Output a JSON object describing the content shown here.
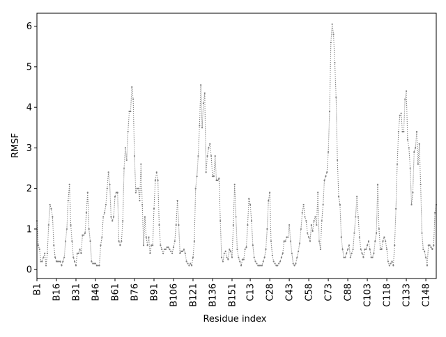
{
  "chart_data": {
    "type": "line",
    "title": "",
    "xlabel": "Residue index",
    "ylabel": "RMSF",
    "xlim": [
      0,
      307
    ],
    "ylim": [
      -0.22,
      6.32
    ],
    "yticks": [
      0,
      1,
      2,
      3,
      4,
      5,
      6
    ],
    "grid": false,
    "legend": "none",
    "x_tick_positions": [
      0,
      15,
      30,
      45,
      60,
      75,
      90,
      105,
      120,
      135,
      150,
      164,
      179,
      194,
      209,
      224,
      239,
      254,
      269,
      284,
      299
    ],
    "x_tick_labels": [
      "B1",
      "B16",
      "B31",
      "B46",
      "B61",
      "B76",
      "B91",
      "B106",
      "B121",
      "B136",
      "B151",
      "C13",
      "C28",
      "C43",
      "C58",
      "C73",
      "C88",
      "C103",
      "C118",
      "C133",
      "C148"
    ],
    "series": [
      {
        "name": "",
        "color": "#808080",
        "line_style": "dotted",
        "marker": "point",
        "values": [
          1.2,
          0.6,
          0.5,
          0.2,
          0.2,
          0.3,
          0.4,
          0.1,
          0.4,
          1.1,
          1.6,
          1.5,
          1.3,
          0.6,
          0.3,
          0.2,
          0.2,
          0.2,
          0.2,
          0.1,
          0.2,
          0.3,
          0.7,
          1.0,
          1.7,
          2.1,
          1.1,
          0.7,
          0.3,
          0.2,
          0.1,
          0.4,
          0.4,
          0.5,
          0.4,
          0.85,
          0.85,
          0.9,
          1.4,
          1.9,
          1.0,
          0.7,
          0.2,
          0.15,
          0.15,
          0.15,
          0.1,
          0.1,
          0.1,
          0.6,
          0.8,
          1.3,
          1.4,
          1.6,
          2.0,
          2.4,
          2.1,
          1.3,
          1.2,
          1.3,
          1.8,
          1.9,
          1.9,
          0.7,
          0.6,
          0.7,
          1.2,
          2.5,
          3.0,
          2.7,
          3.4,
          3.9,
          3.9,
          4.5,
          4.2,
          2.8,
          1.9,
          2.0,
          2.0,
          1.7,
          2.6,
          1.6,
          0.6,
          1.3,
          0.8,
          0.6,
          0.8,
          0.4,
          0.6,
          0.6,
          1.5,
          2.2,
          2.4,
          2.2,
          1.1,
          0.6,
          0.5,
          0.4,
          0.5,
          0.5,
          0.55,
          0.55,
          0.5,
          0.45,
          0.4,
          0.55,
          0.7,
          1.1,
          1.7,
          1.1,
          0.4,
          0.45,
          0.45,
          0.5,
          0.4,
          0.2,
          0.15,
          0.1,
          0.15,
          0.1,
          0.3,
          0.7,
          2.0,
          2.3,
          2.8,
          3.55,
          4.55,
          3.5,
          4.1,
          4.35,
          2.4,
          2.8,
          3.0,
          3.1,
          2.8,
          2.3,
          2.3,
          2.8,
          2.2,
          2.2,
          2.25,
          1.2,
          0.3,
          0.2,
          0.4,
          0.45,
          0.3,
          0.25,
          0.5,
          0.45,
          0.3,
          1.1,
          2.1,
          1.3,
          0.5,
          0.3,
          0.2,
          0.1,
          0.25,
          0.25,
          0.5,
          0.55,
          1.1,
          1.75,
          1.6,
          1.2,
          0.6,
          0.3,
          0.2,
          0.15,
          0.1,
          0.1,
          0.1,
          0.1,
          0.2,
          0.3,
          0.5,
          1.0,
          1.7,
          1.9,
          0.7,
          0.35,
          0.2,
          0.15,
          0.1,
          0.1,
          0.15,
          0.2,
          0.3,
          0.4,
          0.7,
          0.7,
          0.8,
          0.8,
          1.1,
          0.7,
          0.4,
          0.15,
          0.1,
          0.15,
          0.3,
          0.45,
          0.65,
          1.0,
          1.4,
          1.6,
          1.3,
          1.2,
          0.9,
          0.8,
          0.7,
          1.1,
          0.95,
          1.2,
          1.3,
          1.1,
          1.9,
          0.7,
          0.5,
          1.2,
          1.6,
          2.2,
          2.3,
          2.4,
          2.9,
          3.9,
          5.6,
          6.05,
          5.8,
          5.1,
          4.25,
          2.7,
          1.8,
          1.6,
          0.8,
          0.5,
          0.3,
          0.3,
          0.4,
          0.5,
          0.6,
          0.3,
          0.4,
          0.5,
          0.9,
          1.3,
          1.8,
          1.3,
          0.8,
          0.5,
          0.4,
          0.3,
          0.5,
          0.5,
          0.6,
          0.7,
          0.5,
          0.3,
          0.3,
          0.4,
          0.7,
          0.9,
          2.1,
          1.0,
          0.5,
          0.5,
          0.7,
          0.8,
          0.7,
          0.5,
          0.2,
          0.1,
          0.15,
          0.2,
          0.1,
          0.6,
          1.5,
          2.6,
          3.4,
          3.8,
          3.85,
          3.4,
          3.4,
          4.2,
          4.4,
          3.2,
          3.0,
          2.5,
          1.6,
          1.9,
          2.9,
          3.0,
          3.4,
          2.6,
          3.1,
          2.1,
          0.9,
          0.5,
          0.45,
          0.3,
          0.1,
          0.6,
          0.6,
          0.55,
          0.5,
          0.6,
          1.4,
          1.6
        ]
      }
    ]
  }
}
